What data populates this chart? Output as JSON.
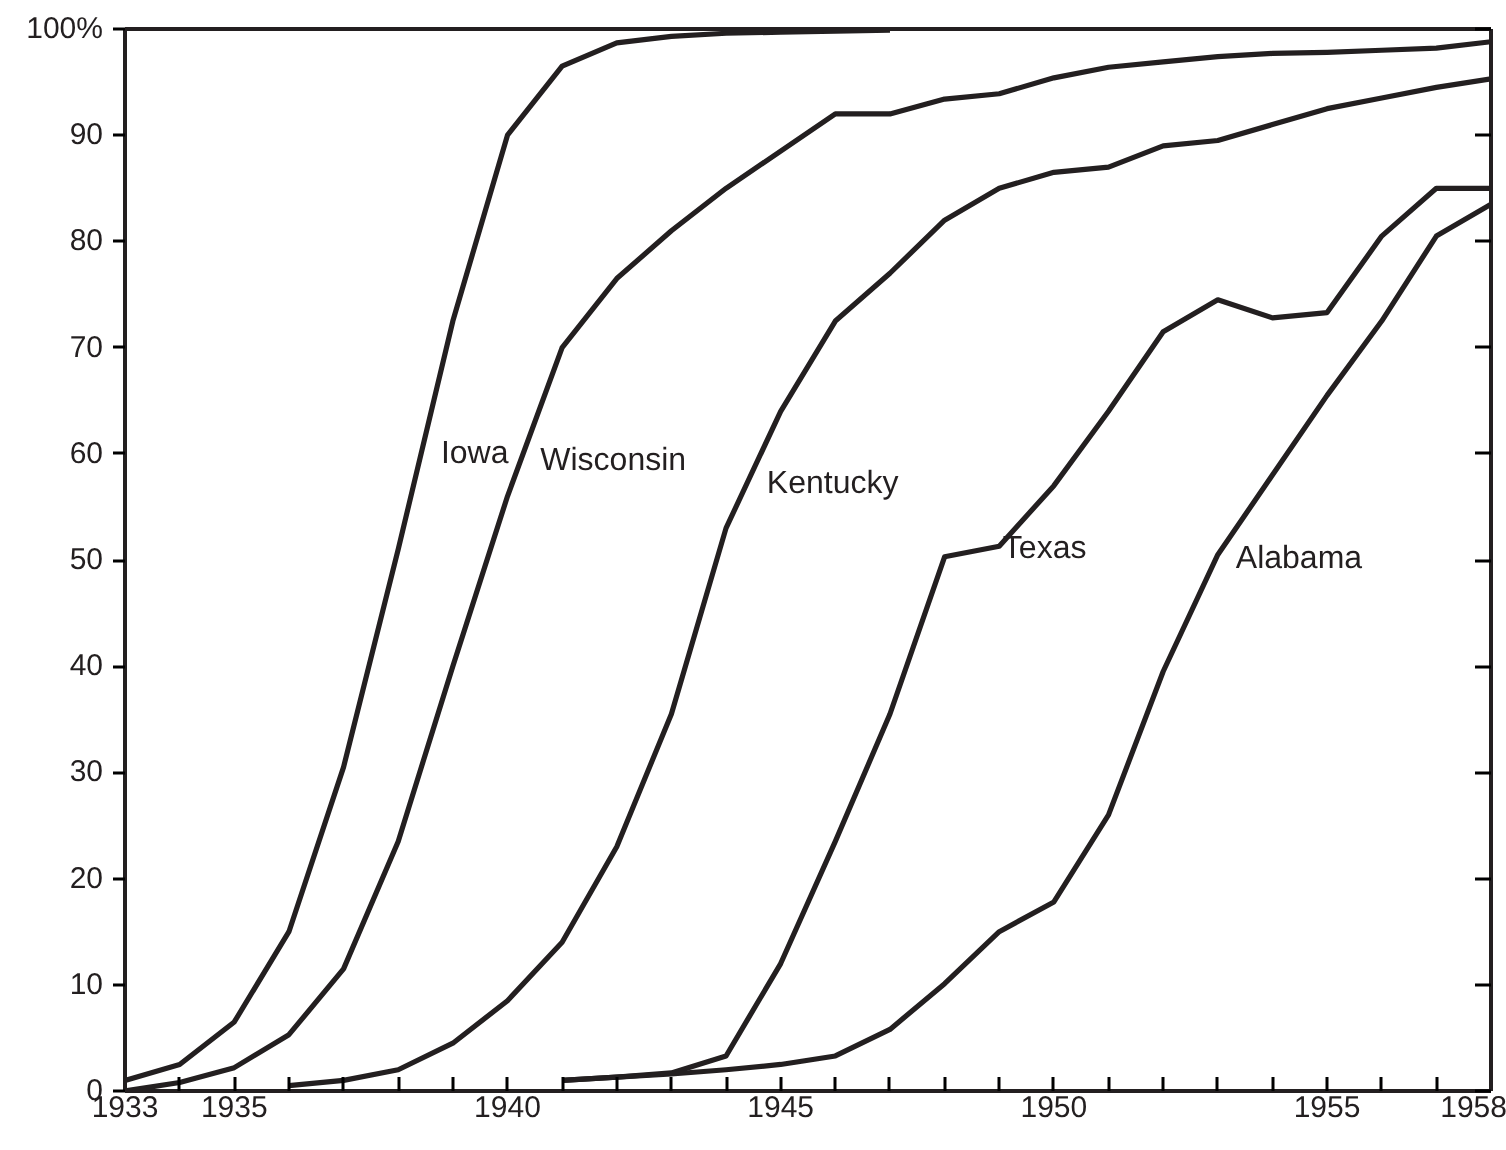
{
  "chart_data": {
    "type": "line",
    "xlim": [
      1933,
      1958
    ],
    "ylim": [
      0,
      100
    ],
    "xticks": [
      1933,
      {
        "value": 1934,
        "label": null
      },
      1935,
      {
        "value": 1936,
        "label": null
      },
      {
        "value": 1937,
        "label": null
      },
      {
        "value": 1938,
        "label": null
      },
      {
        "value": 1939,
        "label": null
      },
      1940,
      {
        "value": 1941,
        "label": null
      },
      {
        "value": 1942,
        "label": null
      },
      {
        "value": 1943,
        "label": null
      },
      {
        "value": 1944,
        "label": null
      },
      1945,
      {
        "value": 1946,
        "label": null
      },
      {
        "value": 1947,
        "label": null
      },
      {
        "value": 1948,
        "label": null
      },
      {
        "value": 1949,
        "label": null
      },
      1950,
      {
        "value": 1951,
        "label": null
      },
      {
        "value": 1952,
        "label": null
      },
      {
        "value": 1953,
        "label": null
      },
      {
        "value": 1954,
        "label": null
      },
      1955,
      {
        "value": 1956,
        "label": null
      },
      {
        "value": 1957,
        "label": null
      },
      1958
    ],
    "yticks": [
      0,
      10,
      20,
      30,
      40,
      50,
      60,
      70,
      80,
      90,
      {
        "value": 100,
        "label": "100%"
      }
    ],
    "grid": false,
    "legend": false,
    "marker": "none",
    "line_style": "solid",
    "series": [
      {
        "name": "Iowa",
        "color": "#231f20",
        "x": [
          1933,
          1934,
          1935,
          1936,
          1937,
          1938,
          1939,
          1940,
          1941,
          1942,
          1943,
          1944,
          1945,
          1946,
          1947
        ],
        "values": [
          1,
          2.5,
          6.5,
          15,
          30.5,
          51,
          72.5,
          90,
          96.5,
          98.7,
          99.3,
          99.6,
          99.7,
          99.8,
          99.9
        ]
      },
      {
        "name": "Wisconsin",
        "color": "#231f20",
        "x": [
          1933,
          1934,
          1935,
          1936,
          1937,
          1938,
          1939,
          1940,
          1941,
          1942,
          1943,
          1944,
          1945,
          1946,
          1947,
          1948,
          1949,
          1950,
          1951,
          1952,
          1953,
          1954,
          1955,
          1956,
          1957,
          1958
        ],
        "values": [
          0,
          0.8,
          2.2,
          5.3,
          11.5,
          23.5,
          40,
          56,
          70,
          76.5,
          81,
          85,
          88.5,
          92,
          92,
          93.4,
          93.9,
          95.4,
          96.4,
          96.9,
          97.4,
          97.7,
          97.8,
          98,
          98.2,
          98.8
        ]
      },
      {
        "name": "Kentucky",
        "color": "#231f20",
        "x": [
          1936,
          1937,
          1938,
          1939,
          1940,
          1941,
          1942,
          1943,
          1944,
          1945,
          1946,
          1947,
          1948,
          1949,
          1950,
          1951,
          1952,
          1953,
          1954,
          1955,
          1956,
          1957,
          1958
        ],
        "values": [
          0.5,
          1,
          2,
          4.5,
          8.5,
          14,
          23,
          35.5,
          53,
          64,
          72.5,
          77,
          82,
          85,
          86.5,
          87,
          89,
          89.5,
          91,
          92.5,
          93.5,
          94.5,
          95.3
        ]
      },
      {
        "name": "Texas",
        "color": "#231f20",
        "x": [
          1941,
          1942,
          1943,
          1944,
          1945,
          1946,
          1947,
          1948,
          1949,
          1950,
          1951,
          1952,
          1953,
          1954,
          1955,
          1956,
          1957,
          1958
        ],
        "values": [
          1,
          1.3,
          1.7,
          3.3,
          12,
          23.5,
          35.5,
          50.3,
          51.3,
          57,
          64,
          71.5,
          74.5,
          72.8,
          73.3,
          80.5,
          85,
          85
        ]
      },
      {
        "name": "Alabama",
        "color": "#231f20",
        "x": [
          1941,
          1942,
          1943,
          1944,
          1945,
          1946,
          1947,
          1948,
          1949,
          1950,
          1951,
          1952,
          1953,
          1954,
          1955,
          1956,
          1957,
          1958
        ],
        "values": [
          1,
          1.3,
          1.6,
          2,
          2.5,
          3.3,
          5.8,
          10.1,
          15,
          17.8,
          26,
          39.5,
          50.5,
          58,
          65.5,
          72.5,
          80.5,
          83.5
        ]
      }
    ]
  }
}
